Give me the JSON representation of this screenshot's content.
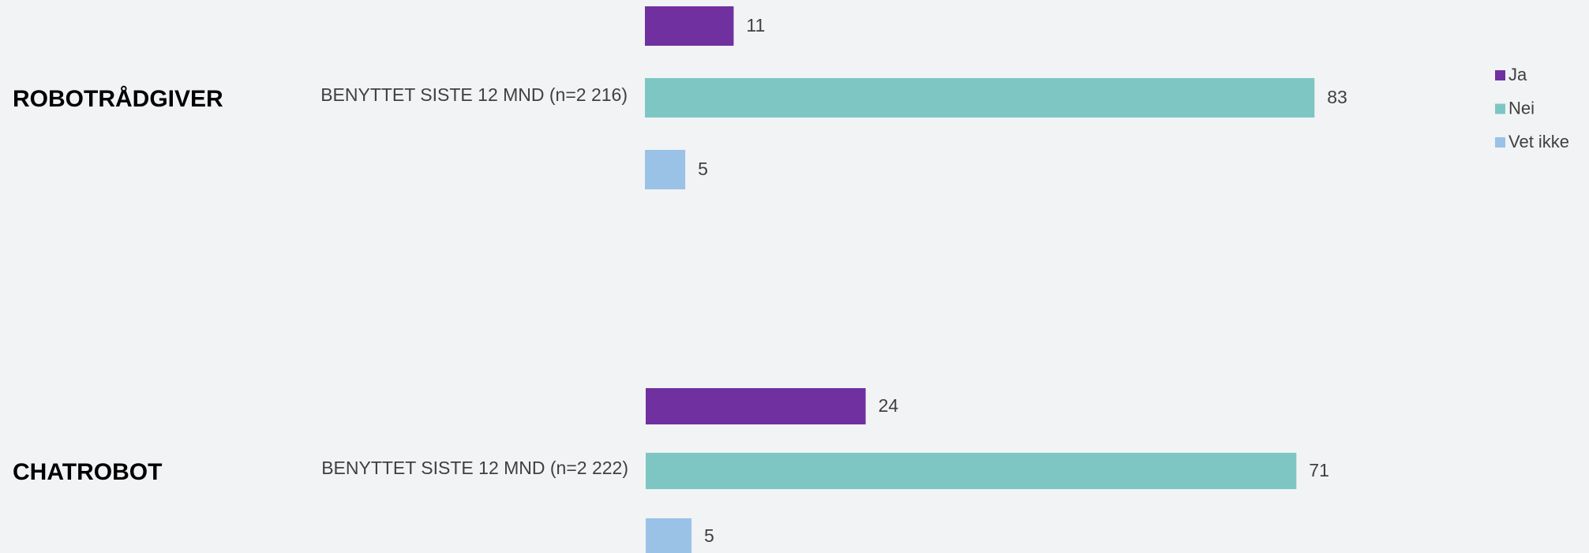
{
  "chart_data": [
    {
      "type": "bar",
      "title": "ROBOTRÅDGIVER",
      "categories": [
        "BENYTTET SISTE 12 MND (n=2 216)"
      ],
      "xlim": [
        0,
        100
      ],
      "series": [
        {
          "name": "Ja",
          "color": "#7030a0",
          "values": [
            11
          ]
        },
        {
          "name": "Nei",
          "color": "#7dc6c3",
          "values": [
            83
          ]
        },
        {
          "name": "Vet ikke",
          "color": "#9ac2e6",
          "values": [
            5
          ]
        }
      ]
    },
    {
      "type": "bar",
      "title": "CHATROBOT",
      "categories": [
        "BENYTTET SISTE 12 MND (n=2 222)"
      ],
      "xlim": [
        0,
        100
      ],
      "series": [
        {
          "name": "Ja",
          "color": "#7030a0",
          "values": [
            24
          ]
        },
        {
          "name": "Nei",
          "color": "#7dc6c3",
          "values": [
            71
          ]
        },
        {
          "name": "Vet ikke",
          "color": "#9ac2e6",
          "values": [
            5
          ]
        }
      ]
    }
  ]
}
